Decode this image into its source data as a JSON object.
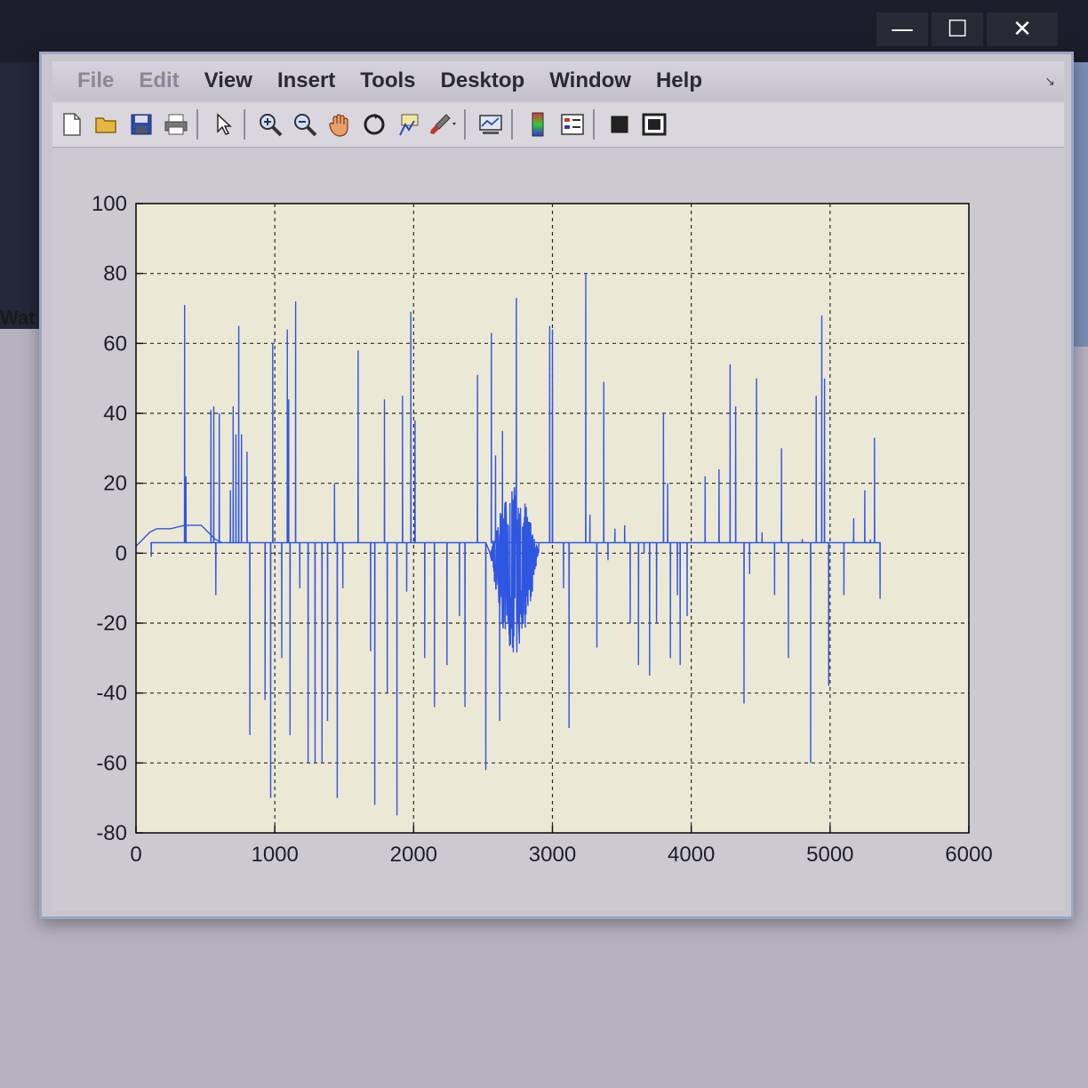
{
  "background": {
    "left_text": "Wat"
  },
  "window_controls": {
    "minimize": "—",
    "maximize": "☐",
    "close": "✕"
  },
  "menu": {
    "items": [
      "File",
      "Edit",
      "View",
      "Insert",
      "Tools",
      "Desktop",
      "Window",
      "Help"
    ],
    "corner": "↘"
  },
  "toolbar": {
    "icons": [
      "new-figure-icon",
      "open-file-icon",
      "save-icon",
      "print-icon",
      "pointer-icon",
      "zoom-in-icon",
      "zoom-out-icon",
      "pan-icon",
      "rotate-3d-icon",
      "data-cursor-icon",
      "brush-icon",
      "link-plot-icon",
      "colorbar-icon",
      "legend-icon",
      "hide-plot-tools-icon",
      "show-plot-tools-icon"
    ]
  },
  "colors": {
    "line": "#2f56e0",
    "axes_bg": "#ece8d6",
    "grid": "#2a2a2a"
  },
  "chart_data": {
    "type": "line",
    "xlim": [
      0,
      6000
    ],
    "ylim": [
      -80,
      100
    ],
    "xticks": [
      "0",
      "1000",
      "2000",
      "3000",
      "4000",
      "5000",
      "6000"
    ],
    "yticks": [
      "100",
      "80",
      "60",
      "40",
      "20",
      "0",
      "-20",
      "-40",
      "-60",
      "-80"
    ],
    "xtick_values": [
      0,
      1000,
      2000,
      3000,
      4000,
      5000,
      6000
    ],
    "ytick_values": [
      100,
      80,
      60,
      40,
      20,
      0,
      -20,
      -40,
      -60,
      -80
    ],
    "grid": true,
    "baseline": 3,
    "series": [
      {
        "start_curve": [
          [
            0,
            2
          ],
          [
            50,
            4
          ],
          [
            100,
            6
          ],
          [
            150,
            7
          ],
          [
            250,
            7
          ],
          [
            350,
            8
          ],
          [
            470,
            8
          ],
          [
            520,
            6
          ],
          [
            570,
            4
          ],
          [
            620,
            3
          ]
        ],
        "spikes": [
          [
            110,
            -1
          ],
          [
            350,
            71
          ],
          [
            360,
            22
          ],
          [
            540,
            41
          ],
          [
            560,
            42
          ],
          [
            575,
            -12
          ],
          [
            600,
            40
          ],
          [
            680,
            18
          ],
          [
            700,
            42
          ],
          [
            720,
            34
          ],
          [
            740,
            65
          ],
          [
            760,
            34
          ],
          [
            800,
            29
          ],
          [
            820,
            -52
          ],
          [
            930,
            -42
          ],
          [
            970,
            -70
          ],
          [
            985,
            60
          ],
          [
            1010,
            3
          ],
          [
            1050,
            -30
          ],
          [
            1090,
            64
          ],
          [
            1100,
            44
          ],
          [
            1110,
            -52
          ],
          [
            1150,
            72
          ],
          [
            1180,
            -10
          ],
          [
            1240,
            -60
          ],
          [
            1290,
            -60
          ],
          [
            1340,
            -60
          ],
          [
            1380,
            -48
          ],
          [
            1430,
            20
          ],
          [
            1450,
            -70
          ],
          [
            1490,
            -10
          ],
          [
            1600,
            58
          ],
          [
            1690,
            -28
          ],
          [
            1720,
            -72
          ],
          [
            1790,
            44
          ],
          [
            1810,
            -40
          ],
          [
            1880,
            -75
          ],
          [
            1920,
            45
          ],
          [
            1950,
            -11
          ],
          [
            1980,
            69
          ],
          [
            2010,
            38
          ],
          [
            2080,
            -30
          ],
          [
            2150,
            -44
          ],
          [
            2240,
            -32
          ],
          [
            2330,
            -18
          ],
          [
            2370,
            -44
          ],
          [
            2460,
            51
          ],
          [
            2520,
            -62
          ],
          [
            2560,
            63
          ],
          [
            2590,
            28
          ],
          [
            2620,
            -48
          ],
          [
            2640,
            35
          ],
          [
            2680,
            -20
          ],
          [
            2740,
            73
          ],
          [
            2820,
            -6
          ],
          [
            2980,
            65
          ],
          [
            3000,
            64
          ],
          [
            3080,
            -10
          ],
          [
            3120,
            -50
          ],
          [
            3240,
            80
          ],
          [
            3270,
            11
          ],
          [
            3320,
            -27
          ],
          [
            3370,
            49
          ],
          [
            3400,
            -2
          ],
          [
            3450,
            7
          ],
          [
            3520,
            8
          ],
          [
            3560,
            -20
          ],
          [
            3620,
            -32
          ],
          [
            3660,
            0
          ],
          [
            3700,
            -35
          ],
          [
            3750,
            -20
          ],
          [
            3800,
            40
          ],
          [
            3830,
            20
          ],
          [
            3850,
            -30
          ],
          [
            3900,
            -12
          ],
          [
            3920,
            -32
          ],
          [
            3970,
            -18
          ],
          [
            4100,
            22
          ],
          [
            4200,
            24
          ],
          [
            4280,
            54
          ],
          [
            4320,
            42
          ],
          [
            4380,
            -43
          ],
          [
            4420,
            -6
          ],
          [
            4470,
            50
          ],
          [
            4510,
            6
          ],
          [
            4600,
            -12
          ],
          [
            4650,
            30
          ],
          [
            4700,
            -30
          ],
          [
            4800,
            4
          ],
          [
            4860,
            -60
          ],
          [
            4900,
            45
          ],
          [
            4940,
            68
          ],
          [
            4960,
            50
          ],
          [
            4990,
            -38
          ],
          [
            5100,
            -12
          ],
          [
            5170,
            10
          ],
          [
            5250,
            18
          ],
          [
            5290,
            4
          ],
          [
            5320,
            33
          ],
          [
            5360,
            -13
          ]
        ],
        "noisy_burst": {
          "x_range": [
            2550,
            2900
          ],
          "amplitude": [
            -29,
            19
          ]
        },
        "end_x": 5360
      }
    ]
  }
}
